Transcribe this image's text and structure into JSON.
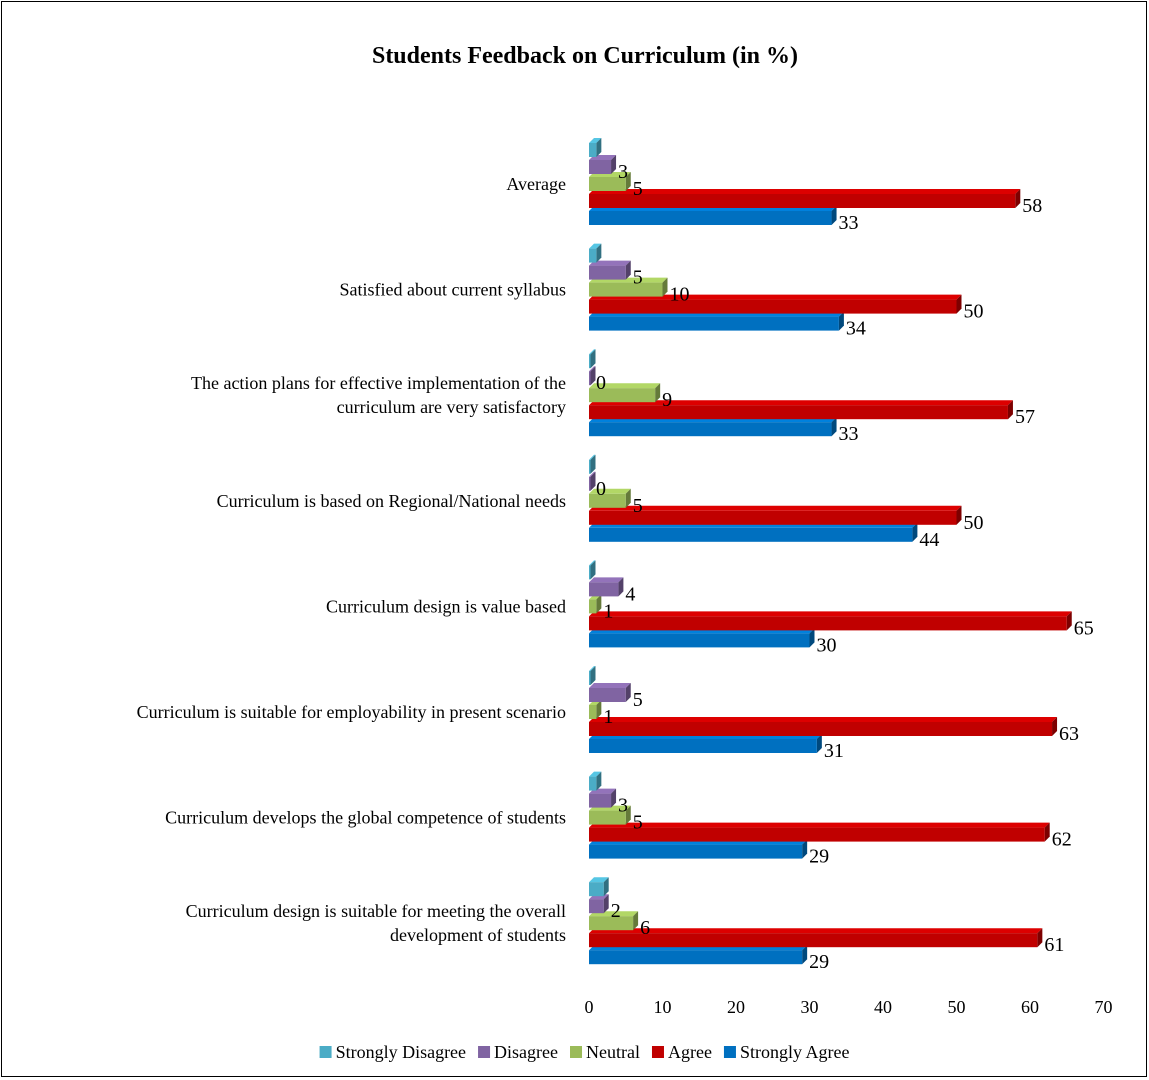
{
  "chart_data": {
    "type": "bar",
    "orientation": "horizontal",
    "title": "Students Feedback on Curriculum (in %)",
    "xlabel": "",
    "ylabel": "",
    "xlim": [
      0,
      70
    ],
    "xticks": [
      0,
      10,
      20,
      30,
      40,
      50,
      60,
      70
    ],
    "grid": false,
    "legend_position": "bottom",
    "categories": [
      "Average",
      "Satisfied about current syllabus",
      "The action plans for effective implementation of the curriculum are very satisfactory",
      "Curriculum is based on Regional/National needs",
      "Curriculum design is value based",
      "Curriculum is suitable for employability in present scenario",
      "Curriculum develops the global competence of students",
      "Curriculum design is suitable for meeting the overall development of students"
    ],
    "category_lines": [
      [
        "Average"
      ],
      [
        "Satisfied about current syllabus"
      ],
      [
        "The action plans for effective implementation of the",
        "curriculum are very satisfactory"
      ],
      [
        "Curriculum is based on Regional/National needs"
      ],
      [
        "Curriculum design is value based"
      ],
      [
        "Curriculum is suitable for employability in present scenario"
      ],
      [
        "Curriculum develops the global competence of students"
      ],
      [
        "Curriculum design is suitable for meeting the overall",
        "development of students"
      ]
    ],
    "series": [
      {
        "name": "Strongly Agree",
        "color": "#0070C0",
        "values": [
          33,
          34,
          33,
          44,
          30,
          31,
          29,
          29
        ]
      },
      {
        "name": "Agree",
        "color": "#C00000",
        "values": [
          58,
          50,
          57,
          50,
          65,
          63,
          62,
          61
        ]
      },
      {
        "name": "Neutral",
        "color": "#9BBB59",
        "values": [
          5,
          10,
          9,
          5,
          1,
          1,
          5,
          6
        ]
      },
      {
        "name": "Disagree",
        "color": "#8064A2",
        "values": [
          3,
          5,
          0,
          0,
          4,
          5,
          3,
          2
        ]
      },
      {
        "name": "Strongly Disagree",
        "color": "#4BACC6",
        "values": [
          1,
          1,
          0.2,
          0.2,
          0.1,
          0.1,
          1,
          2
        ]
      }
    ],
    "data_labels": {
      "Strongly Agree": [
        "33",
        "34",
        "33",
        "44",
        "30",
        "31",
        "29",
        "29"
      ],
      "Agree": [
        "58",
        "50",
        "57",
        "50",
        "65",
        "63",
        "62",
        "61"
      ],
      "Neutral": [
        "5",
        "10",
        "9",
        "5",
        "1",
        "1",
        "5",
        "6"
      ],
      "Disagree": [
        "3",
        "5",
        "0",
        "0",
        "4",
        "5",
        "3",
        "2"
      ],
      "Strongly Disagree": [
        "",
        "",
        "",
        "",
        "",
        "",
        "",
        ""
      ]
    },
    "legend_order": [
      "Strongly Disagree",
      "Disagree",
      "Neutral",
      "Agree",
      "Strongly Agree"
    ]
  }
}
